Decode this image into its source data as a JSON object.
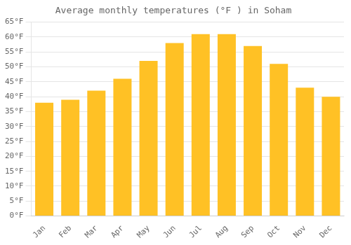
{
  "chart_data": {
    "type": "bar",
    "title": "Average monthly temperatures (°F ) in Soham",
    "categories": [
      "Jan",
      "Feb",
      "Mar",
      "Apr",
      "May",
      "Jun",
      "Jul",
      "Aug",
      "Sep",
      "Oct",
      "Nov",
      "Dec"
    ],
    "values": [
      38,
      39,
      42,
      46,
      52,
      58,
      61,
      61,
      57,
      51,
      43,
      40
    ],
    "color": "#FFC125",
    "ylim": [
      0,
      65
    ],
    "yticks": [
      {
        "value": 0,
        "label": "0°F"
      },
      {
        "value": 5,
        "label": "5°F"
      },
      {
        "value": 10,
        "label": "10°F"
      },
      {
        "value": 15,
        "label": "15°F"
      },
      {
        "value": 20,
        "label": "20°F"
      },
      {
        "value": 25,
        "label": "25°F"
      },
      {
        "value": 30,
        "label": "30°F"
      },
      {
        "value": 35,
        "label": "35°F"
      },
      {
        "value": 40,
        "label": "40°F"
      },
      {
        "value": 45,
        "label": "45°F"
      },
      {
        "value": 50,
        "label": "50°F"
      },
      {
        "value": 55,
        "label": "55°F"
      },
      {
        "value": 60,
        "label": "60°F"
      },
      {
        "value": 65,
        "label": "65°F"
      }
    ],
    "grid": true
  }
}
